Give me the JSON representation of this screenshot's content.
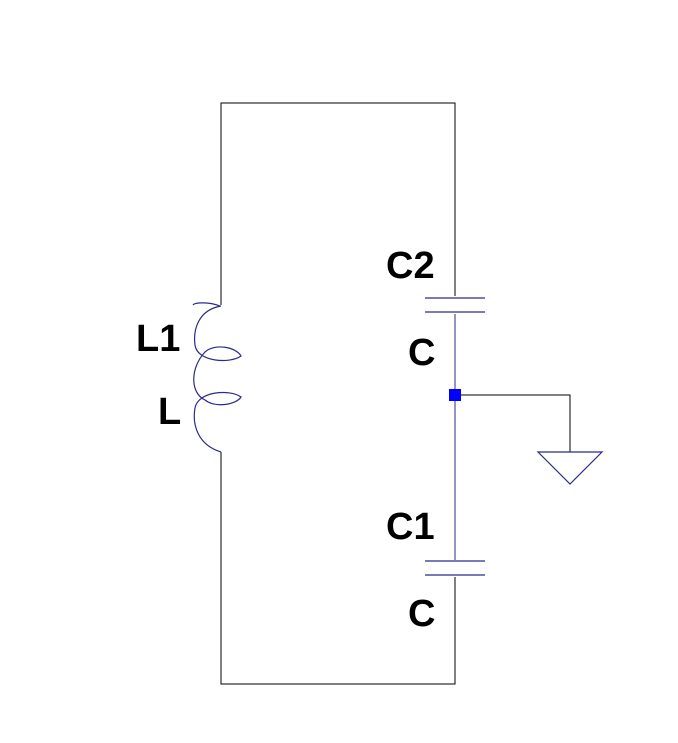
{
  "colors": {
    "background": "#ffffff",
    "wire": "#000000",
    "component": "#2b2b8a",
    "node": "#0000ff"
  },
  "components": {
    "inductor": {
      "ref": "L1",
      "value": "L"
    },
    "capacitor_top": {
      "ref": "C2",
      "value": "C"
    },
    "capacitor_bottom": {
      "ref": "C1",
      "value": "C"
    },
    "ground": {
      "symbol": "ground-icon"
    }
  }
}
